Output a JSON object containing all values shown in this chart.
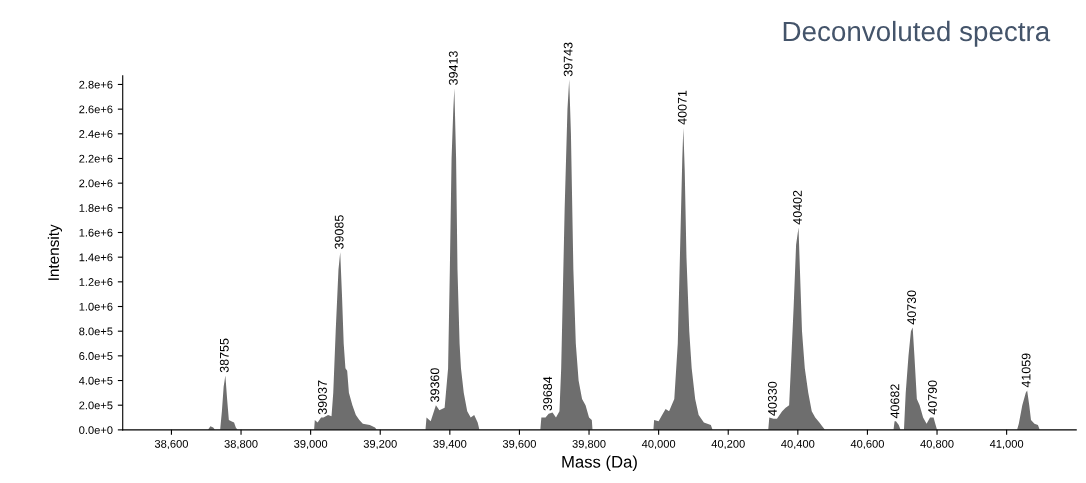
{
  "chart_data": {
    "type": "area",
    "title": "Deconvoluted spectra",
    "xlabel": "Mass (Da)",
    "ylabel": "Intensity",
    "series": [
      {
        "color": "#6e6e6e",
        "x": [
          38705,
          38712,
          38720,
          38725,
          38740,
          38745,
          38750,
          38755,
          38760,
          38765,
          38772,
          38780,
          38785,
          38790,
          39010,
          39012,
          39020,
          39030,
          39037,
          39050,
          39060,
          39065,
          39072,
          39080,
          39085,
          39090,
          39095,
          39100,
          39105,
          39110,
          39120,
          39130,
          39140,
          39150,
          39170,
          39185,
          39190,
          39330,
          39333,
          39345,
          39360,
          39370,
          39385,
          39395,
          39400,
          39405,
          39410,
          39413,
          39418,
          39422,
          39428,
          39432,
          39440,
          39450,
          39460,
          39470,
          39480,
          39485,
          39660,
          39663,
          39675,
          39684,
          39695,
          39705,
          39715,
          39720,
          39730,
          39738,
          39743,
          39748,
          39755,
          39762,
          39770,
          39780,
          39790,
          39800,
          39808,
          39810,
          39985,
          39987,
          40000,
          40010,
          40020,
          40030,
          40045,
          40055,
          40062,
          40068,
          40071,
          40075,
          40080,
          40088,
          40095,
          40105,
          40115,
          40130,
          40150,
          40155,
          40315,
          40318,
          40330,
          40340,
          40355,
          40365,
          40375,
          40380,
          40388,
          40395,
          40402,
          40406,
          40412,
          40420,
          40430,
          40440,
          40450,
          40462,
          40470,
          40478,
          40675,
          40678,
          40682,
          40690,
          40695,
          40705,
          40710,
          40718,
          40725,
          40730,
          40735,
          40742,
          40750,
          40760,
          40770,
          40780,
          40790,
          40795,
          40800,
          41030,
          41035,
          41045,
          41055,
          41059,
          41065,
          41070,
          41080,
          41090,
          41095
        ],
        "values": [
          0,
          30000,
          20000,
          0,
          0,
          150000,
          350000,
          440000,
          250000,
          80000,
          70000,
          60000,
          20000,
          0,
          0,
          80000,
          60000,
          100000,
          100000,
          120000,
          110000,
          300000,
          800000,
          1300000,
          1440000,
          1100000,
          700000,
          500000,
          480000,
          300000,
          200000,
          120000,
          80000,
          50000,
          40000,
          20000,
          0,
          0,
          100000,
          70000,
          200000,
          160000,
          180000,
          500000,
          1300000,
          2200000,
          2600000,
          2770000,
          2200000,
          1300000,
          700000,
          500000,
          300000,
          150000,
          100000,
          120000,
          60000,
          0,
          0,
          100000,
          100000,
          130000,
          140000,
          100000,
          150000,
          500000,
          1800000,
          2600000,
          2840000,
          2400000,
          1300000,
          700000,
          400000,
          250000,
          200000,
          100000,
          80000,
          0,
          0,
          80000,
          70000,
          120000,
          170000,
          150000,
          250000,
          700000,
          1500000,
          2200000,
          2450000,
          2100000,
          1400000,
          800000,
          500000,
          250000,
          120000,
          60000,
          40000,
          0,
          0,
          100000,
          90000,
          90000,
          150000,
          180000,
          200000,
          500000,
          1000000,
          1500000,
          1640000,
          1300000,
          800000,
          500000,
          300000,
          150000,
          100000,
          60000,
          30000,
          0,
          0,
          70000,
          70000,
          40000,
          0,
          0,
          300000,
          600000,
          800000,
          830000,
          600000,
          250000,
          200000,
          100000,
          50000,
          100000,
          100000,
          50000,
          0,
          0,
          50000,
          200000,
          300000,
          320000,
          200000,
          80000,
          50000,
          40000,
          0
        ]
      }
    ],
    "xlim": [
      38460,
      41200
    ],
    "xticks": [
      {
        "value": 38600,
        "label": "38,600"
      },
      {
        "value": 38800,
        "label": "38,800"
      },
      {
        "value": 39000,
        "label": "39,000"
      },
      {
        "value": 39200,
        "label": "39,200"
      },
      {
        "value": 39400,
        "label": "39,400"
      },
      {
        "value": 39600,
        "label": "39,600"
      },
      {
        "value": 39800,
        "label": "39,800"
      },
      {
        "value": 40000,
        "label": "40,000"
      },
      {
        "value": 40200,
        "label": "40,200"
      },
      {
        "value": 40400,
        "label": "40,400"
      },
      {
        "value": 40600,
        "label": "40,600"
      },
      {
        "value": 40800,
        "label": "40,800"
      },
      {
        "value": 41000,
        "label": "41,000"
      }
    ],
    "ylim": [
      0,
      2870000
    ],
    "yticks": [
      {
        "value": 0,
        "label": "0.0e+0"
      },
      {
        "value": 200000,
        "label": "2.0e+5"
      },
      {
        "value": 400000,
        "label": "4.0e+5"
      },
      {
        "value": 600000,
        "label": "6.0e+5"
      },
      {
        "value": 800000,
        "label": "8.0e+5"
      },
      {
        "value": 1000000,
        "label": "1.0e+6"
      },
      {
        "value": 1200000,
        "label": "1.2e+6"
      },
      {
        "value": 1400000,
        "label": "1.4e+6"
      },
      {
        "value": 1600000,
        "label": "1.6e+6"
      },
      {
        "value": 1800000,
        "label": "1.8e+6"
      },
      {
        "value": 2000000,
        "label": "2.0e+6"
      },
      {
        "value": 2200000,
        "label": "2.2e+6"
      },
      {
        "value": 2400000,
        "label": "2.4e+6"
      },
      {
        "value": 2600000,
        "label": "2.6e+6"
      },
      {
        "value": 2800000,
        "label": "2.8e+6"
      }
    ],
    "annotations": [
      {
        "text": "38755",
        "x": 38755,
        "y": 440000
      },
      {
        "text": "39037",
        "x": 39037,
        "y": 100000
      },
      {
        "text": "39085",
        "x": 39085,
        "y": 1440000
      },
      {
        "text": "39360",
        "x": 39360,
        "y": 200000
      },
      {
        "text": "39413",
        "x": 39413,
        "y": 2770000
      },
      {
        "text": "39684",
        "x": 39684,
        "y": 130000
      },
      {
        "text": "39743",
        "x": 39743,
        "y": 2840000
      },
      {
        "text": "40071",
        "x": 40071,
        "y": 2450000
      },
      {
        "text": "40330",
        "x": 40330,
        "y": 90000
      },
      {
        "text": "40402",
        "x": 40402,
        "y": 1640000
      },
      {
        "text": "40682",
        "x": 40682,
        "y": 70000
      },
      {
        "text": "40730",
        "x": 40730,
        "y": 830000
      },
      {
        "text": "40790",
        "x": 40790,
        "y": 100000
      },
      {
        "text": "41059",
        "x": 41059,
        "y": 320000
      }
    ],
    "grid": false,
    "legend": false
  }
}
